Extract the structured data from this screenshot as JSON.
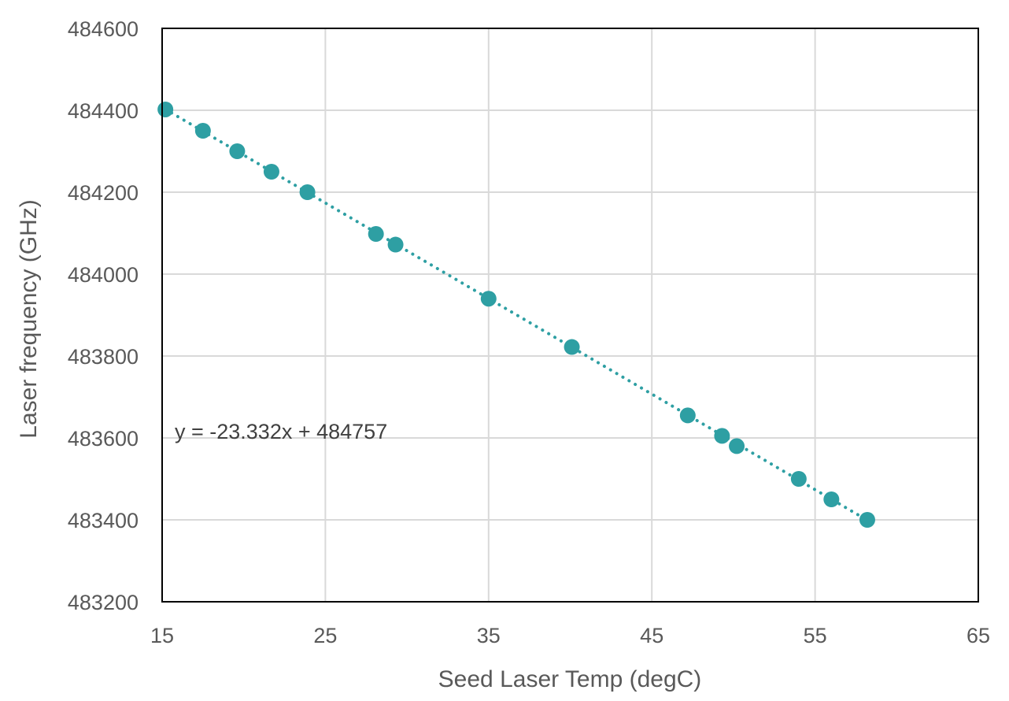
{
  "chart_data": {
    "type": "scatter",
    "title": "",
    "xlabel": "Seed Laser Temp (degC)",
    "ylabel": "Laser frequency (GHz)",
    "xlim": [
      15,
      65
    ],
    "ylim": [
      483200,
      484600
    ],
    "xticks": [
      "15",
      "25",
      "35",
      "45",
      "55",
      "65"
    ],
    "yticks": [
      "483200",
      "483400",
      "483600",
      "483800",
      "484000",
      "484200",
      "484400",
      "484600"
    ],
    "grid": true,
    "legend": "none",
    "marker_color": "#2E9FA3",
    "trendline": {
      "type": "linear",
      "style": "dotted",
      "slope": -23.332,
      "intercept": 484757,
      "equation": "y = -23.332x + 484757"
    },
    "series": [
      {
        "x": [
          15.2,
          17.5,
          19.6,
          21.7,
          23.9,
          28.1,
          29.3,
          35.0,
          40.1,
          47.2,
          49.3,
          50.2,
          54.0,
          56.0,
          58.2
        ],
        "y": [
          484402,
          484350,
          484300,
          484250,
          484200,
          484098,
          484072,
          483940,
          483822,
          483655,
          483605,
          483580,
          483500,
          483450,
          483400
        ]
      }
    ]
  }
}
